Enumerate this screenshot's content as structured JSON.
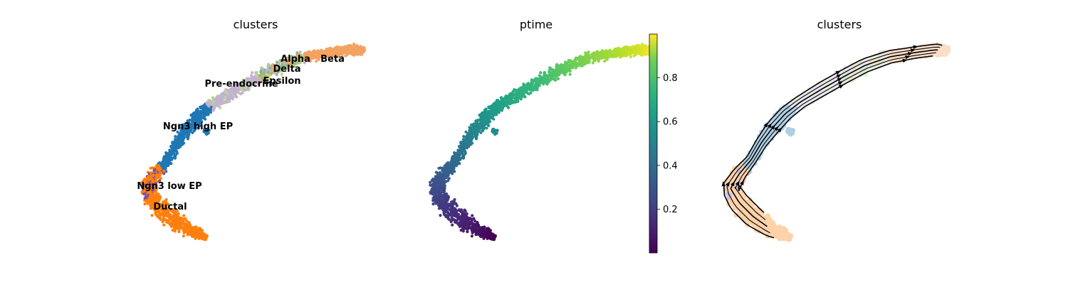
{
  "chart_data": [
    {
      "type": "scatter",
      "title": "clusters",
      "categories": [
        "Ductal",
        "Ngn3 low EP",
        "Ngn3 high EP",
        "Pre-endocrine",
        "Beta",
        "Alpha",
        "Delta",
        "Epsilon"
      ],
      "colors": {
        "Ductal": "#ff7f0e",
        "Ngn3 low EP": "#ff7f0e",
        "Ngn3 high EP": "#1f77b4",
        "Pre-endocrine": "#c5b0d5",
        "Beta": "#f4a261",
        "Alpha": "#86b98a",
        "Delta": "#f4a261",
        "Epsilon": "#b5d98b"
      },
      "cluster_labels": [
        "Alpha",
        "Beta",
        "Delta",
        "Pre-endocrine",
        "Epsilon",
        "Ngn3 high EP",
        "Ngn3 low EP",
        "Ductal"
      ],
      "grid": false
    },
    {
      "type": "scatter",
      "title": "ptime",
      "colormap": "viridis",
      "colorbar": {
        "ticks": [
          "0.2",
          "0.4",
          "0.6",
          "0.8"
        ],
        "tick_values": [
          0.2,
          0.4,
          0.6,
          0.8
        ],
        "range": [
          0,
          1
        ]
      },
      "grid": false
    },
    {
      "type": "scatter",
      "title": "clusters",
      "overlay": "velocity streamlines",
      "grid": false
    }
  ]
}
